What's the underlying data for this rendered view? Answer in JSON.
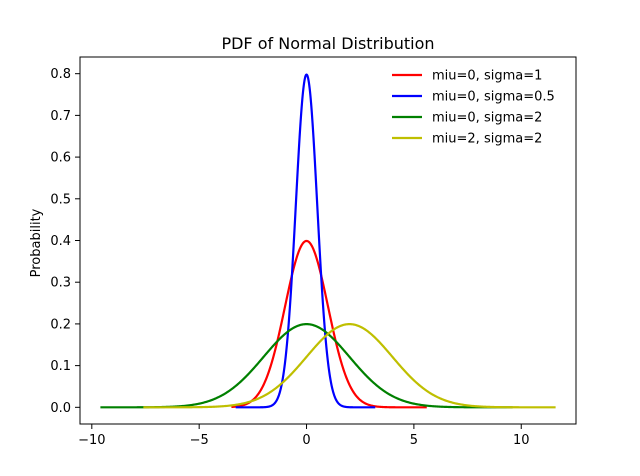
{
  "chart_data": {
    "type": "line",
    "title": "PDF of Normal Distribution",
    "xlabel": "",
    "ylabel": "Probability",
    "xlim": [
      -10.55,
      12.55
    ],
    "ylim": [
      -0.04,
      0.84
    ],
    "xticks": [
      -10,
      -5,
      0,
      5,
      10
    ],
    "xtick_labels": [
      "−10",
      "−5",
      "0",
      "5",
      "10"
    ],
    "yticks": [
      0.0,
      0.1,
      0.2,
      0.3,
      0.4,
      0.5,
      0.6,
      0.7,
      0.8
    ],
    "ytick_labels": [
      "0.0",
      "0.1",
      "0.2",
      "0.3",
      "0.4",
      "0.5",
      "0.6",
      "0.7",
      "0.8"
    ],
    "grid": false,
    "legend_position": "top-right",
    "legend_frame": false,
    "series": [
      {
        "name": "miu=0, sigma=1",
        "mu": 0,
        "sigma": 1,
        "x_range": [
          -3.5,
          5.6
        ],
        "color": "#ff0000"
      },
      {
        "name": "miu=0, sigma=0.5",
        "mu": 0,
        "sigma": 0.5,
        "x_range": [
          -3.3,
          3.2
        ],
        "color": "#0000ff"
      },
      {
        "name": "miu=0, sigma=2",
        "mu": 0,
        "sigma": 2,
        "x_range": [
          -9.6,
          9.6
        ],
        "color": "#008000"
      },
      {
        "name": "miu=2, sigma=2",
        "mu": 2,
        "sigma": 2,
        "x_range": [
          -7.6,
          11.6
        ],
        "color": "#bfbf00"
      }
    ]
  }
}
